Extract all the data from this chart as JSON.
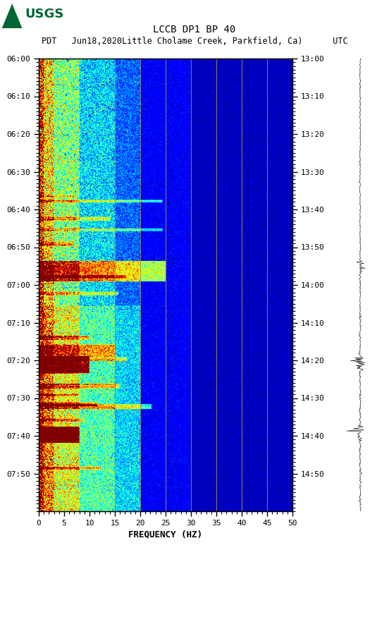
{
  "title_line1": "LCCB DP1 BP 40",
  "title_line2_pdt": "PDT   Jun18,2020",
  "title_line2_loc": "Little Cholame Creek, Parkfield, Ca)",
  "title_line2_utc": "UTC",
  "left_times": [
    "06:00",
    "06:10",
    "06:20",
    "06:30",
    "06:40",
    "06:50",
    "07:00",
    "07:10",
    "07:20",
    "07:30",
    "07:40",
    "07:50"
  ],
  "right_times": [
    "13:00",
    "13:10",
    "13:20",
    "13:30",
    "13:40",
    "13:50",
    "14:00",
    "14:10",
    "14:20",
    "14:30",
    "14:40",
    "14:50"
  ],
  "freq_min": 0,
  "freq_max": 50,
  "freq_ticks": [
    0,
    5,
    10,
    15,
    20,
    25,
    30,
    35,
    40,
    45,
    50
  ],
  "xlabel": "FREQUENCY (HZ)",
  "vertical_lines_freq": [
    15,
    20,
    25,
    30,
    35,
    40,
    45
  ],
  "bg_color": "#ffffff",
  "usgs_color": "#006633",
  "n_time": 660,
  "n_freq": 500,
  "noise_seed": 42
}
